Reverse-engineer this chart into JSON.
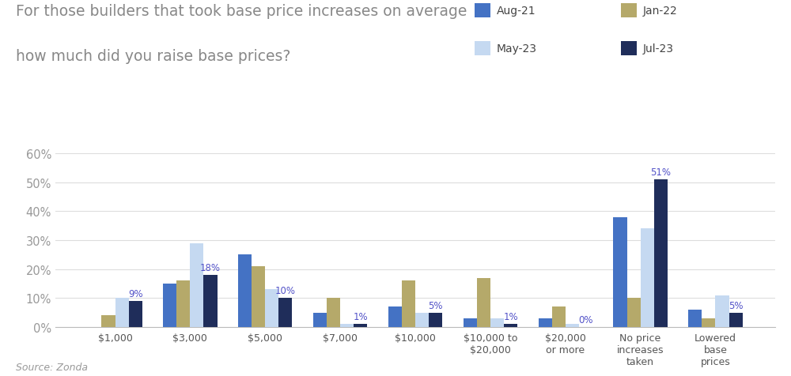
{
  "title_line1": "For those builders that took base price increases on average",
  "title_line2": "how much did you raise base prices?",
  "source": "Source: Zonda",
  "categories": [
    "$1,000",
    "$3,000",
    "$5,000",
    "$7,000",
    "$10,000",
    "$10,000 to\n$20,000",
    "$20,000\nor more",
    "No price\nincreases\ntaken",
    "Lowered\nbase\nprices"
  ],
  "series": {
    "Aug-21": [
      0,
      15,
      25,
      5,
      7,
      3,
      3,
      38,
      6
    ],
    "Jan-22": [
      4,
      16,
      21,
      10,
      16,
      17,
      7,
      10,
      3
    ],
    "May-23": [
      10,
      29,
      13,
      1,
      5,
      3,
      1,
      34,
      11
    ],
    "Jul-23": [
      9,
      18,
      10,
      1,
      5,
      1,
      0,
      51,
      5
    ]
  },
  "colors": {
    "Aug-21": "#4472C4",
    "Jan-22": "#B5A96A",
    "May-23": "#C5D9F1",
    "Jul-23": "#1F2D5A"
  },
  "label_color": "#5252C8",
  "ylim": [
    0,
    65
  ],
  "yticks": [
    0,
    10,
    20,
    30,
    40,
    50,
    60
  ],
  "ytick_labels": [
    "0%",
    "10%",
    "20%",
    "30%",
    "40%",
    "50%",
    "60%"
  ],
  "background_color": "#FFFFFF",
  "grid_color": "#DDDDDD"
}
